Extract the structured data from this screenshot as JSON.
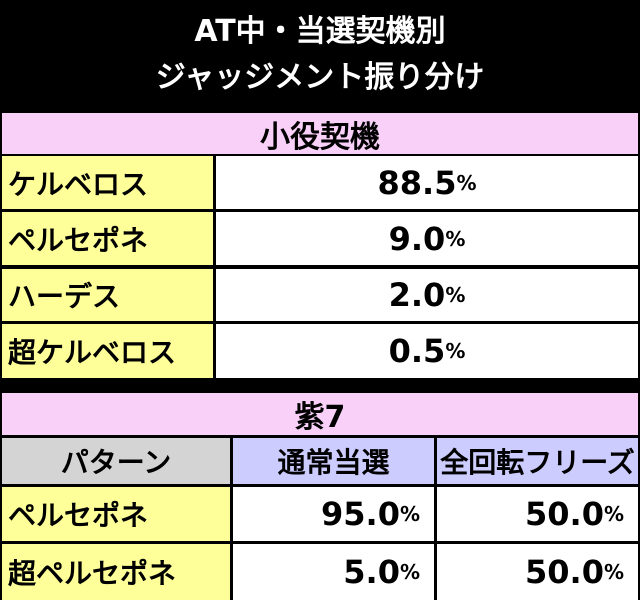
{
  "header": {
    "title_line1": "AT中・当選契機別",
    "title_line2": "ジャッジメント振り分け"
  },
  "section1": {
    "heading": "小役契機",
    "rows": [
      [
        "ケルベロス",
        "88.5%"
      ],
      [
        "ペルセポネ",
        "9.0%"
      ],
      [
        "ハーデス",
        "2.0%"
      ],
      [
        "超ケルベロス",
        "0.5%"
      ]
    ]
  },
  "section2": {
    "heading": "紫7",
    "columns": [
      "パターン",
      "通常当選",
      "全回転フリーズ"
    ],
    "rows": [
      [
        "ペルセポネ",
        "95.0%",
        "50.0%"
      ],
      [
        "超ペルセポネ",
        "5.0%",
        "50.0%"
      ]
    ]
  }
}
